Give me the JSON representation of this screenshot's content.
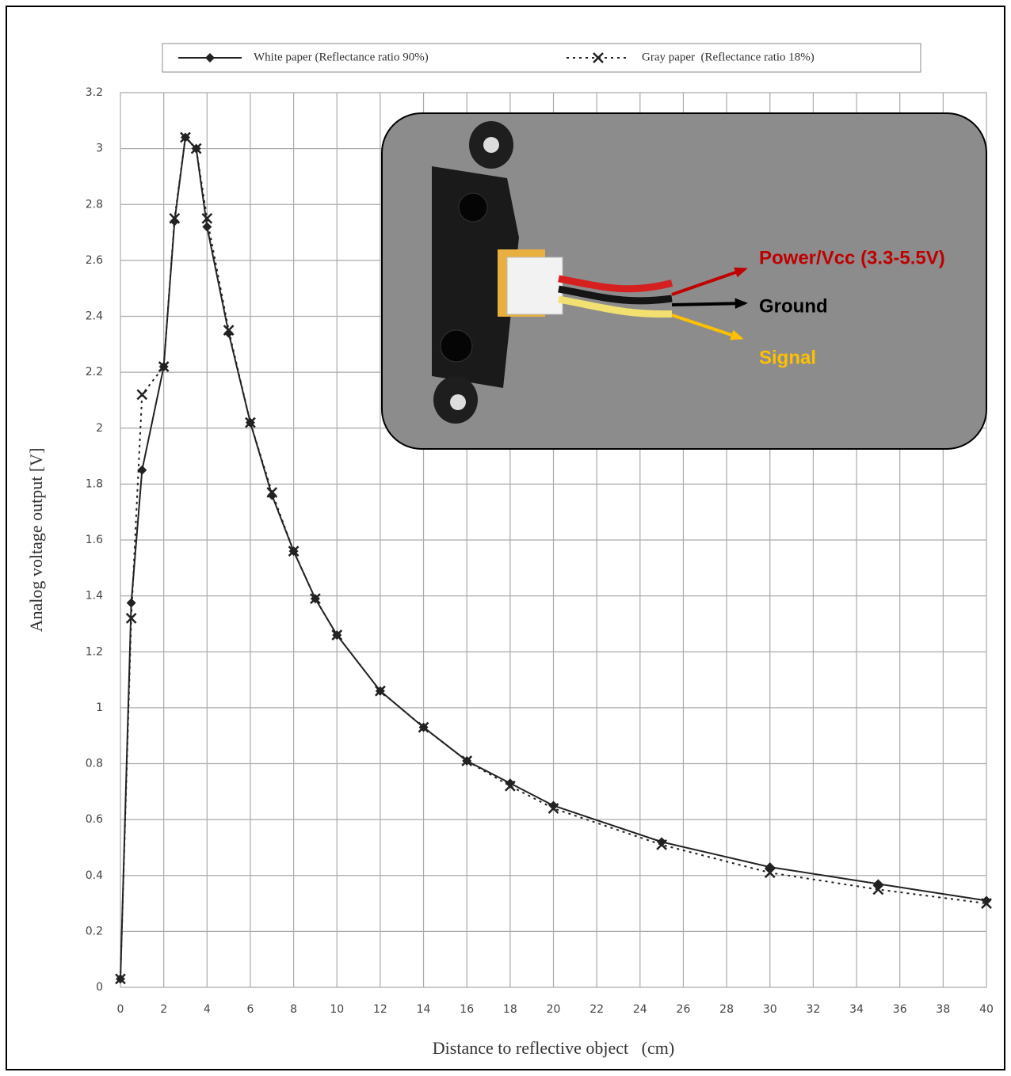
{
  "chart_data": {
    "type": "line",
    "x": [
      0,
      0.5,
      1,
      2,
      2.5,
      3,
      3.5,
      4,
      5,
      6,
      7,
      8,
      9,
      10,
      12,
      14,
      16,
      18,
      20,
      25,
      30,
      35,
      40
    ],
    "series": [
      {
        "name": "White paper (Reflectance ratio 90%)",
        "color": "#222222",
        "line_style": "solid",
        "marker": "diamond",
        "values": [
          0.03,
          1.375,
          1.85,
          2.22,
          2.74,
          3.04,
          3.0,
          2.72,
          2.34,
          2.02,
          1.76,
          1.56,
          1.39,
          1.26,
          1.06,
          0.93,
          0.81,
          0.73,
          0.65,
          0.52,
          0.43,
          0.37,
          0.31
        ]
      },
      {
        "name": "Gray paper  (Reflectance ratio 18%)",
        "color": "#222222",
        "line_style": "dotted",
        "marker": "x",
        "values": [
          0.03,
          1.32,
          2.12,
          2.22,
          2.75,
          3.04,
          3.0,
          2.75,
          2.35,
          2.02,
          1.77,
          1.56,
          1.39,
          1.26,
          1.06,
          0.93,
          0.81,
          0.72,
          0.64,
          0.51,
          0.41,
          0.35,
          0.3
        ]
      }
    ],
    "x_label": "Distance to reflective object   (cm)",
    "y_label": "Analog voltage output [V]",
    "xlim": [
      0,
      40
    ],
    "ylim": [
      0,
      3.2
    ],
    "xticks": [
      0,
      2,
      4,
      6,
      8,
      10,
      12,
      14,
      16,
      18,
      20,
      22,
      24,
      26,
      28,
      30,
      32,
      34,
      36,
      38,
      40
    ],
    "yticks": [
      0,
      0.2,
      0.4,
      0.6,
      0.8,
      1,
      1.2,
      1.4,
      1.6,
      1.8,
      2,
      2.2,
      2.4,
      2.6,
      2.8,
      3,
      3.2
    ],
    "grid": true,
    "legend": "top",
    "annotations": [
      {
        "text": "Power/Vcc (3.3-5.5V)",
        "color": "#c00000"
      },
      {
        "text": "Ground",
        "color": "#000000"
      },
      {
        "text": "Signal",
        "color": "#ffc000"
      }
    ]
  }
}
